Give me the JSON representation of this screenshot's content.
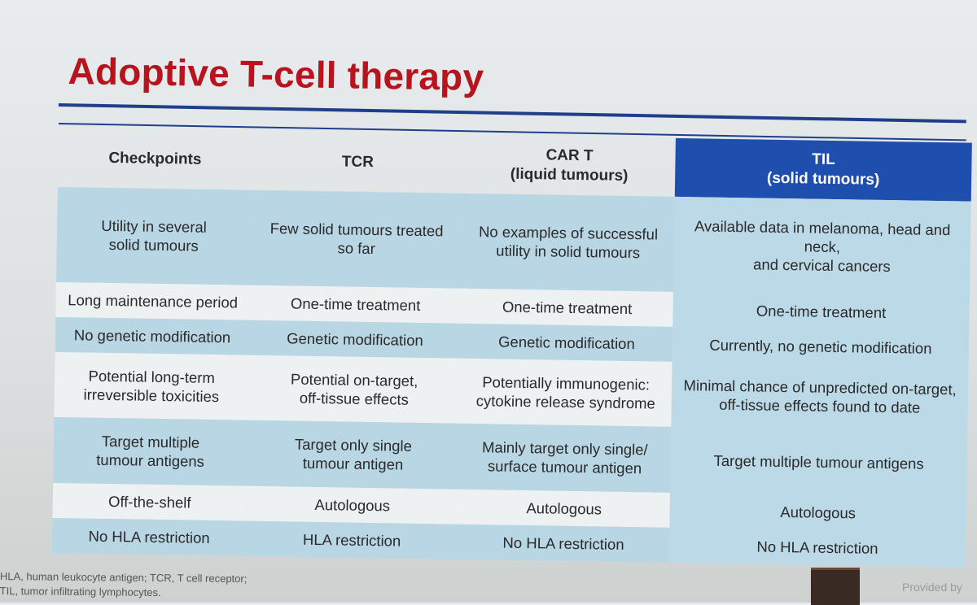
{
  "title": "Adoptive T-cell therapy",
  "table": {
    "headers": [
      {
        "line1": "Checkpoints",
        "line2": ""
      },
      {
        "line1": "TCR",
        "line2": ""
      },
      {
        "line1": "CAR T",
        "line2": "(liquid tumours)"
      },
      {
        "line1": "TIL",
        "line2": "(solid tumours)"
      }
    ],
    "rows": [
      {
        "cells": [
          [
            "Utility in several",
            "solid tumours"
          ],
          [
            "Few solid tumours treated",
            "so far"
          ],
          [
            "No examples of successful",
            "utility in solid tumours"
          ],
          [
            "Available data in melanoma, head and neck,",
            "and cervical cancers"
          ]
        ]
      },
      {
        "cells": [
          [
            "Long maintenance period",
            ""
          ],
          [
            "One-time treatment",
            ""
          ],
          [
            "One-time treatment",
            ""
          ],
          [
            "One-time treatment",
            ""
          ]
        ]
      },
      {
        "cells": [
          [
            "No genetic modification",
            ""
          ],
          [
            "Genetic modification",
            ""
          ],
          [
            "Genetic modification",
            ""
          ],
          [
            "Currently, no genetic modification",
            ""
          ]
        ]
      },
      {
        "cells": [
          [
            "Potential long-term",
            "irreversible toxicities"
          ],
          [
            "Potential on-target,",
            "off-tissue effects"
          ],
          [
            "Potentially immunogenic:",
            "cytokine release syndrome"
          ],
          [
            "Minimal chance of unpredicted on-target,",
            "off-tissue effects found to date"
          ]
        ]
      },
      {
        "cells": [
          [
            "Target multiple",
            "tumour antigens"
          ],
          [
            "Target only single",
            "tumour antigen"
          ],
          [
            "Mainly target only single/",
            "surface tumour antigen"
          ],
          [
            "Target multiple tumour antigens",
            ""
          ]
        ]
      },
      {
        "cells": [
          [
            "Off-the-shelf",
            ""
          ],
          [
            "Autologous",
            ""
          ],
          [
            "Autologous",
            ""
          ],
          [
            "Autologous",
            ""
          ]
        ]
      },
      {
        "cells": [
          [
            "No HLA restriction",
            ""
          ],
          [
            "HLA restriction",
            ""
          ],
          [
            "No HLA restriction",
            ""
          ],
          [
            "No HLA restriction",
            ""
          ]
        ]
      }
    ]
  },
  "footnote": {
    "line1": "HLA, human leukocyte antigen; TCR, T cell receptor;",
    "line2": "TIL, tumor infiltrating lymphocytes."
  },
  "provided_by": "Provided by"
}
